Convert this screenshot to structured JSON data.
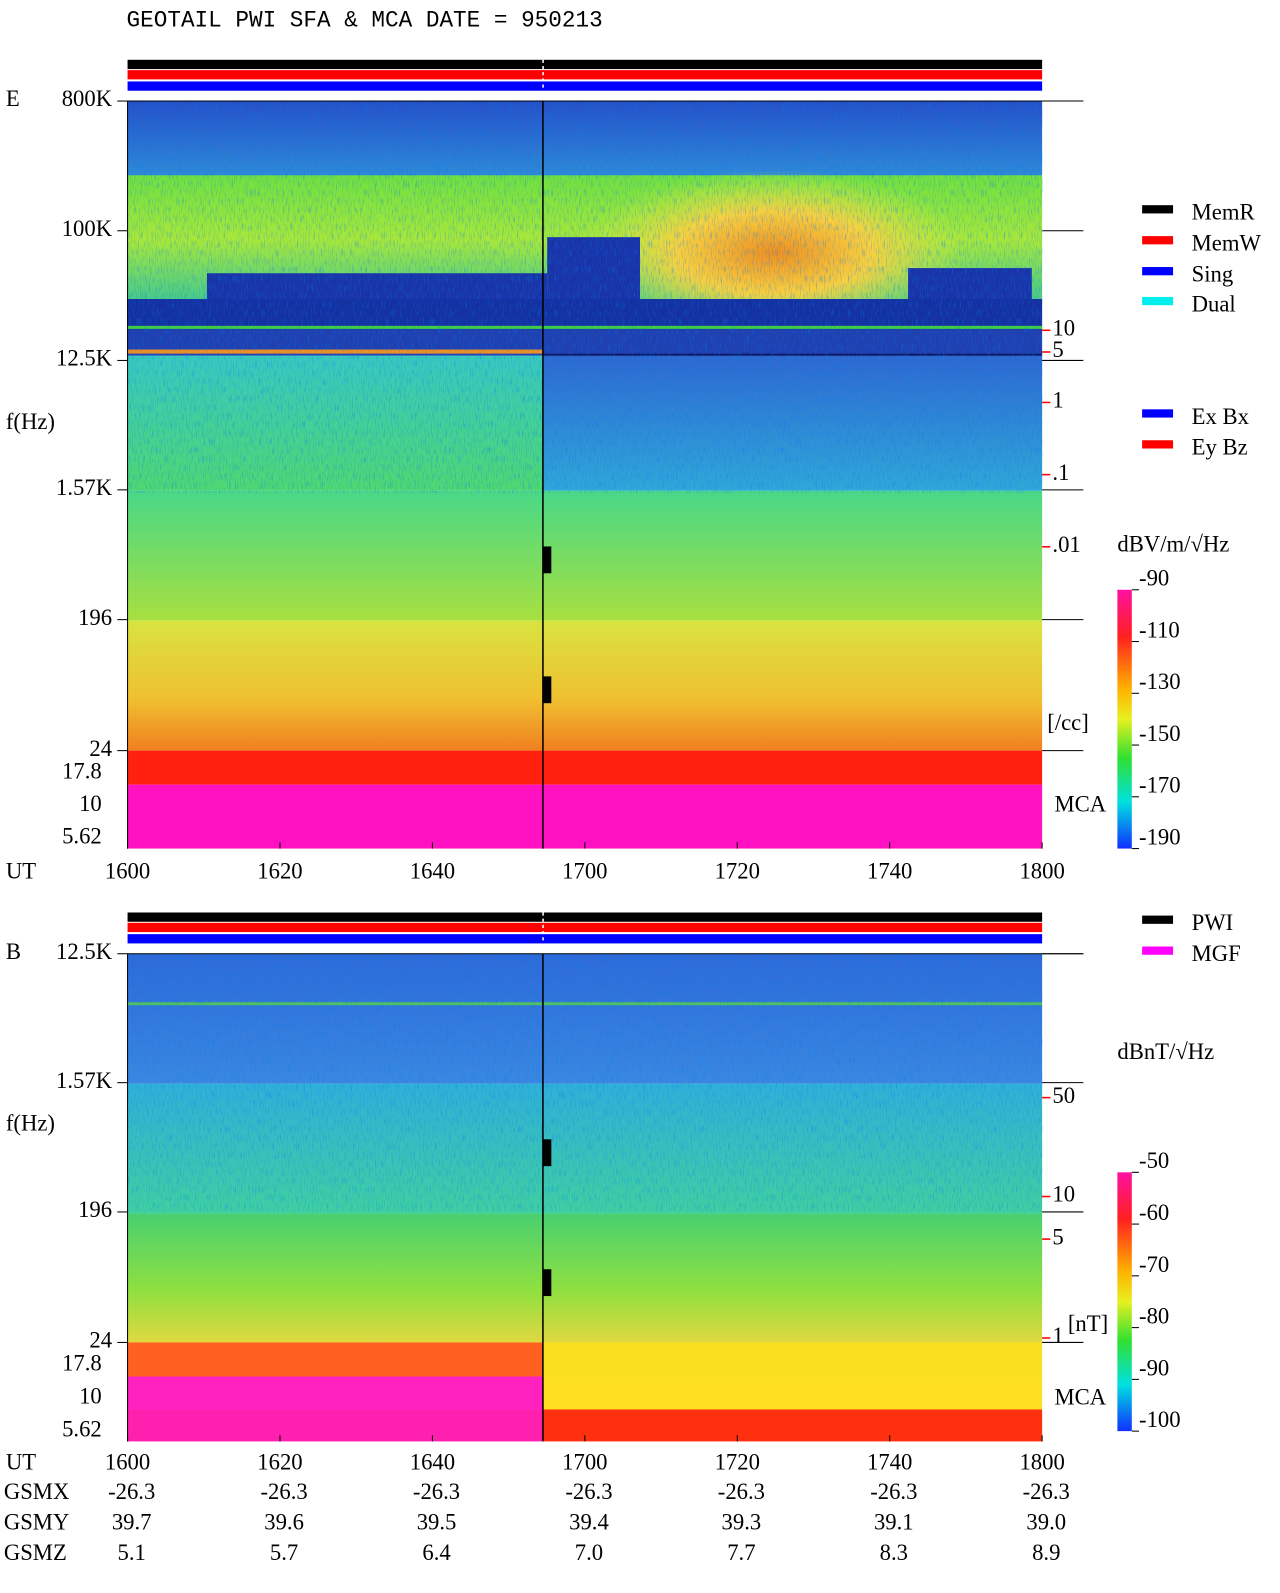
{
  "title": "GEOTAIL  PWI SFA & MCA   DATE = 950213",
  "chart_data": [
    {
      "type": "spectrogram",
      "panel_label": "E",
      "y_label": "f(Hz)",
      "x_label": "UT",
      "log_y": true,
      "ylim": [
        24,
        800000
      ],
      "yticks": [
        {
          "value": 800000,
          "label": "800K"
        },
        {
          "value": 100000,
          "label": "100K"
        },
        {
          "value": 12500,
          "label": "12.5K"
        },
        {
          "value": 1570,
          "label": "1.57K"
        },
        196,
        24
      ],
      "mca_label": "MCA",
      "mca_ticks": [
        17.8,
        10,
        5.62
      ],
      "xlim": [
        960,
        1080
      ],
      "xticks": [
        {
          "value": 960,
          "label": "1600"
        },
        {
          "value": 980,
          "label": "1620"
        },
        {
          "value": 1000,
          "label": "1640"
        },
        {
          "value": 1020,
          "label": "1700"
        },
        {
          "value": 1040,
          "label": "1720"
        },
        {
          "value": 1060,
          "label": "1740"
        },
        {
          "value": 1080,
          "label": "1800"
        }
      ],
      "cursor_x": 1014.5,
      "y2_label": "[/cc]",
      "y2_color": "#ff0000",
      "y2_log": true,
      "y2lim": [
        1.5e-05,
        15000
      ],
      "y2ticks": [
        10,
        5,
        1,
        {
          "value": 0.1,
          "label": ".1"
        },
        {
          "value": 0.01,
          "label": ".01"
        }
      ],
      "colorbar": {
        "label": "dBV/m/√Hz",
        "clim": [
          -190,
          -90
        ],
        "ticks": [
          -90,
          -110,
          -130,
          -150,
          -170,
          -190
        ]
      },
      "legends": [
        [
          {
            "name": "MemR",
            "color": "#000000"
          },
          {
            "name": "MemW",
            "color": "#ff0000"
          },
          {
            "name": "Sing",
            "color": "#0000ff"
          },
          {
            "name": "Dual",
            "color": "#00eeee"
          }
        ],
        [
          {
            "name": "Ex Bx",
            "color": "#0000ff"
          },
          {
            "name": "Ey Bz",
            "color": "#ff0000"
          }
        ]
      ]
    },
    {
      "type": "spectrogram",
      "panel_label": "B",
      "y_label": "f(Hz)",
      "x_label": "UT",
      "log_y": true,
      "ylim": [
        24,
        12500
      ],
      "yticks": [
        {
          "value": 12500,
          "label": "12.5K"
        },
        {
          "value": 1570,
          "label": "1.57K"
        },
        196,
        24
      ],
      "mca_label": "MCA",
      "mca_ticks": [
        17.8,
        10,
        5.62
      ],
      "xlim": [
        960,
        1080
      ],
      "xticks": [
        {
          "value": 960,
          "label": "1600"
        },
        {
          "value": 980,
          "label": "1620"
        },
        {
          "value": 1000,
          "label": "1640"
        },
        {
          "value": 1020,
          "label": "1700"
        },
        {
          "value": 1040,
          "label": "1720"
        },
        {
          "value": 1060,
          "label": "1740"
        },
        {
          "value": 1080,
          "label": "1800"
        }
      ],
      "cursor_x": 1014.5,
      "y2_label": "[nT]",
      "y2_color": "#ff0000",
      "y2_log": true,
      "y2lim": [
        0.93,
        520
      ],
      "y2ticks": [
        50,
        10,
        5,
        1
      ],
      "colorbar": {
        "label": "dBnT/√Hz",
        "clim": [
          -100,
          -50
        ],
        "ticks": [
          -50,
          -60,
          -70,
          -80,
          -90,
          -100
        ]
      },
      "legends": [
        [
          {
            "name": "PWI",
            "color": "#000000"
          },
          {
            "name": "MGF",
            "color": "#ff00ff"
          }
        ]
      ]
    }
  ],
  "orbit": {
    "rows": [
      {
        "name": "GSMX",
        "values": [
          "-26.3",
          "-26.3",
          "-26.3",
          "-26.3",
          "-26.3",
          "-26.3",
          "-26.3"
        ]
      },
      {
        "name": "GSMY",
        "values": [
          "39.7",
          "39.6",
          "39.5",
          "39.4",
          "39.3",
          "39.1",
          "39.0"
        ]
      },
      {
        "name": "GSMZ",
        "values": [
          "5.1",
          "5.7",
          "6.4",
          "7.0",
          "7.7",
          "8.3",
          "8.9"
        ]
      }
    ]
  }
}
